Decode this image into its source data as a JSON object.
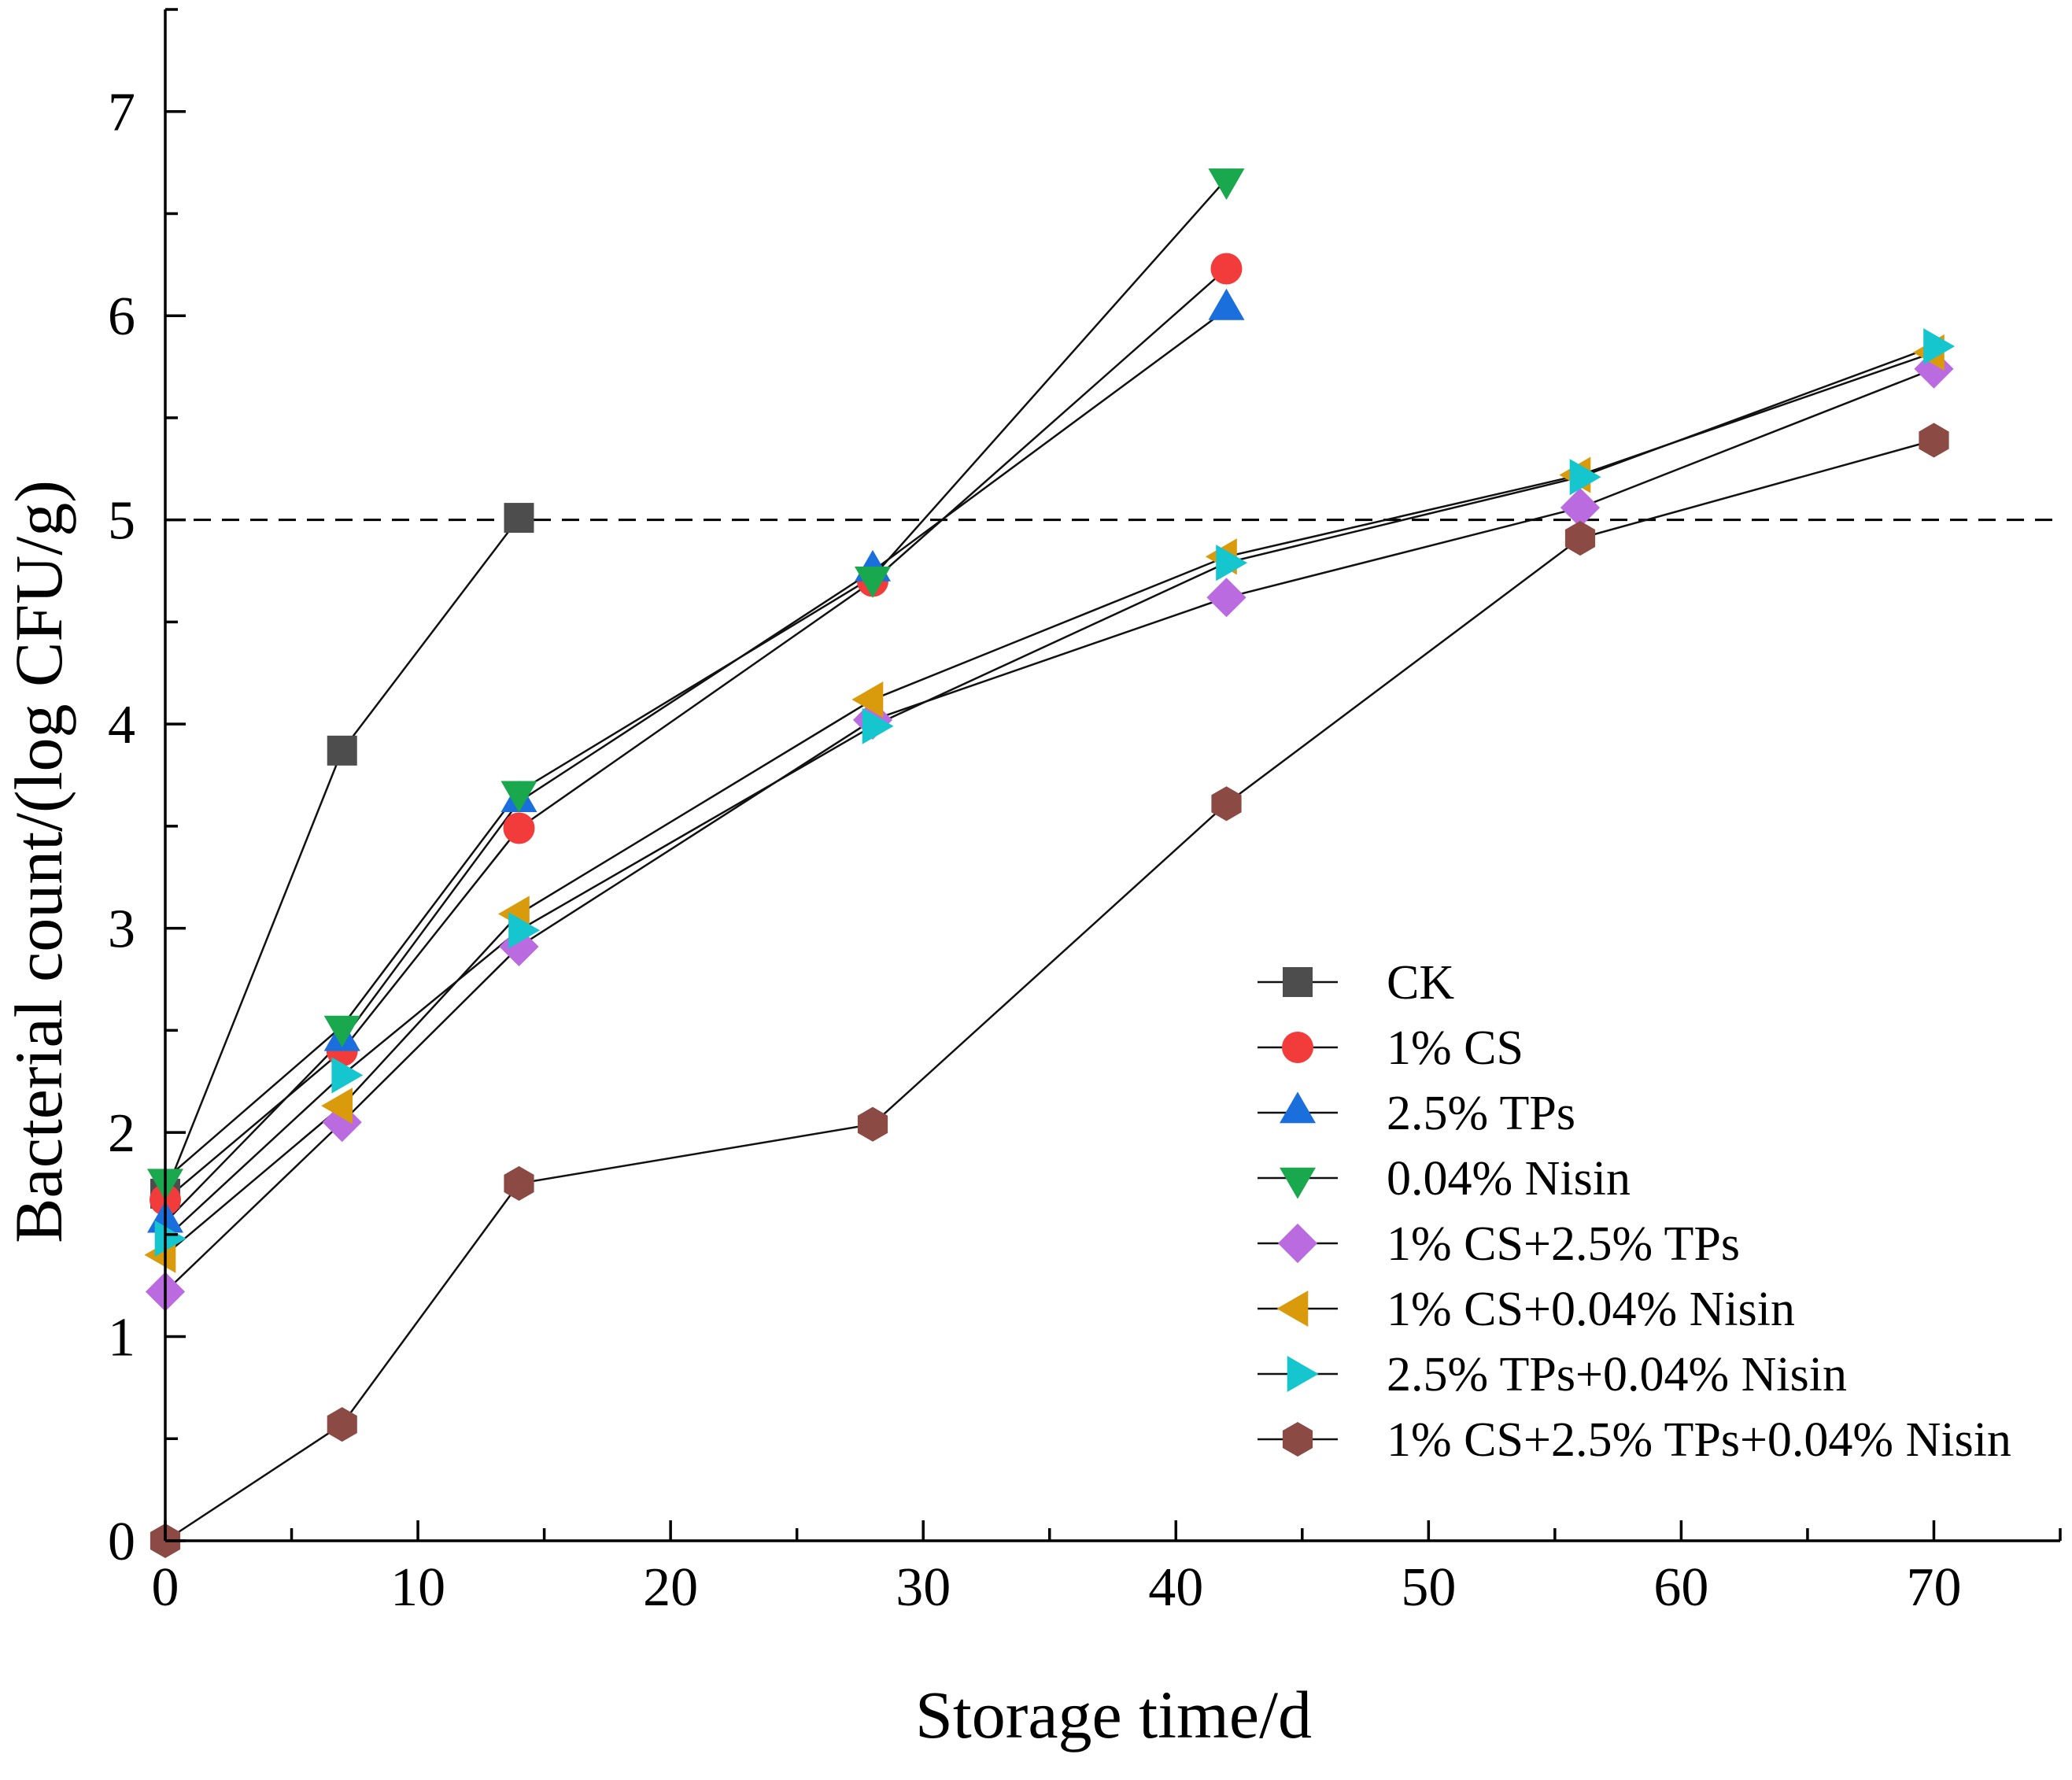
{
  "chart_data": {
    "type": "line",
    "xlabel": "Storage time/d",
    "ylabel": "Bacterial count/(log CFU/g)",
    "xlim": [
      0,
      75
    ],
    "ylim": [
      0,
      7.5
    ],
    "xticks": [
      "0",
      "10",
      "20",
      "30",
      "40",
      "50",
      "60",
      "70"
    ],
    "yticks": [
      "0",
      "1",
      "2",
      "3",
      "4",
      "5",
      "6",
      "7"
    ],
    "grid": false,
    "legend_position": "bottom-right",
    "reference_line": {
      "y": 5,
      "style": "dashed"
    },
    "series": [
      {
        "name": "CK",
        "marker": "square",
        "color": "#4d4d4d",
        "x": [
          0,
          7,
          14
        ],
        "y": [
          1.7,
          3.87,
          5.01
        ]
      },
      {
        "name": "1% CS",
        "marker": "circle",
        "color": "#f23b3b",
        "x": [
          0,
          7,
          14,
          28,
          42
        ],
        "y": [
          1.67,
          2.4,
          3.49,
          4.7,
          6.23
        ]
      },
      {
        "name": "2.5% TPs",
        "marker": "triangle-up",
        "color": "#1a6fdc",
        "x": [
          0,
          7,
          14,
          28,
          42
        ],
        "y": [
          1.56,
          2.45,
          3.62,
          4.75,
          6.03
        ]
      },
      {
        "name": "0.04% Nisin",
        "marker": "triangle-down",
        "color": "#1aa84f",
        "x": [
          0,
          7,
          14,
          28,
          42
        ],
        "y": [
          1.77,
          2.52,
          3.67,
          4.72,
          6.67
        ]
      },
      {
        "name": "1% CS+2.5% TPs",
        "marker": "diamond",
        "color": "#bb6be0",
        "x": [
          0,
          7,
          14,
          28,
          42,
          56,
          70
        ],
        "y": [
          1.22,
          2.05,
          2.91,
          4.02,
          4.62,
          5.06,
          5.74
        ]
      },
      {
        "name": "1% CS+0.04% Nisin",
        "marker": "triangle-left",
        "color": "#d99a0b",
        "x": [
          0,
          7,
          14,
          28,
          42,
          56,
          70
        ],
        "y": [
          1.4,
          2.13,
          3.07,
          4.12,
          4.82,
          5.22,
          5.82
        ]
      },
      {
        "name": "2.5% TPs+0.04% Nisin",
        "marker": "triangle-right",
        "color": "#16c6cf",
        "x": [
          0,
          7,
          14,
          28,
          42,
          56,
          70
        ],
        "y": [
          1.48,
          2.28,
          2.99,
          3.99,
          4.79,
          5.21,
          5.85
        ]
      },
      {
        "name": "1% CS+2.5% TPs+0.04% Nisin",
        "marker": "hexagon",
        "color": "#8c4a45",
        "x": [
          0,
          7,
          14,
          28,
          42,
          56,
          70
        ],
        "y": [
          0,
          0.57,
          1.75,
          2.04,
          3.61,
          4.91,
          5.39
        ]
      }
    ]
  }
}
